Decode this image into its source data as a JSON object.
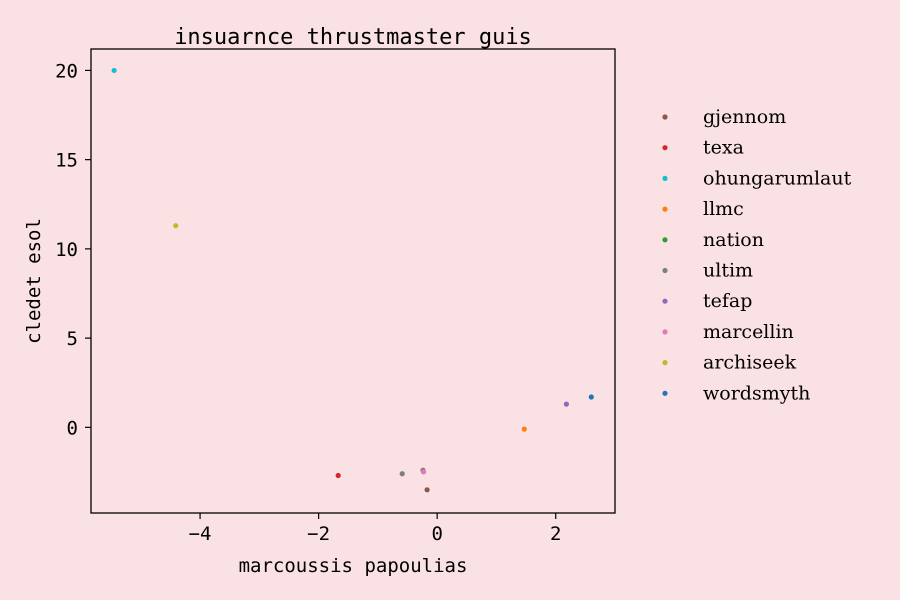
{
  "chart_data": {
    "type": "scatter",
    "title": "insuarnce thrustmaster guis",
    "xlabel": "marcoussis papoulias",
    "ylabel": "cledet esol",
    "xlim": [
      -5.84,
      3.0
    ],
    "ylim": [
      -4.8,
      21.2
    ],
    "x_ticks": [
      -4,
      -2,
      0,
      2
    ],
    "y_ticks": [
      0,
      5,
      10,
      15,
      20
    ],
    "legend_position": "right, outside plot",
    "grid": false,
    "series": [
      {
        "name": "gjennom",
        "color": "#8c564b",
        "points": [
          {
            "x": -0.17,
            "y": -3.5
          }
        ]
      },
      {
        "name": "texa",
        "color": "#d62728",
        "points": [
          {
            "x": -1.67,
            "y": -2.7
          }
        ]
      },
      {
        "name": "ohungarumlaut",
        "color": "#17becf",
        "points": [
          {
            "x": -5.45,
            "y": 20.0
          }
        ]
      },
      {
        "name": "llmc",
        "color": "#ff7f0e",
        "points": [
          {
            "x": 1.47,
            "y": -0.1
          }
        ]
      },
      {
        "name": "nation",
        "color": "#2ca02c",
        "points": []
      },
      {
        "name": "ultim",
        "color": "#7f7f7f",
        "points": [
          {
            "x": -0.59,
            "y": -2.6
          },
          {
            "x": -0.24,
            "y": -2.4
          }
        ]
      },
      {
        "name": "tefap",
        "color": "#9467bd",
        "points": [
          {
            "x": 2.18,
            "y": 1.3
          }
        ]
      },
      {
        "name": "marcellin",
        "color": "#e377c2",
        "points": [
          {
            "x": -0.23,
            "y": -2.5
          }
        ]
      },
      {
        "name": "archiseek",
        "color": "#bcbd22",
        "points": [
          {
            "x": -4.41,
            "y": 11.3
          }
        ]
      },
      {
        "name": "wordsmyth",
        "color": "#1f77b4",
        "points": [
          {
            "x": 2.6,
            "y": 1.7
          }
        ]
      }
    ]
  }
}
